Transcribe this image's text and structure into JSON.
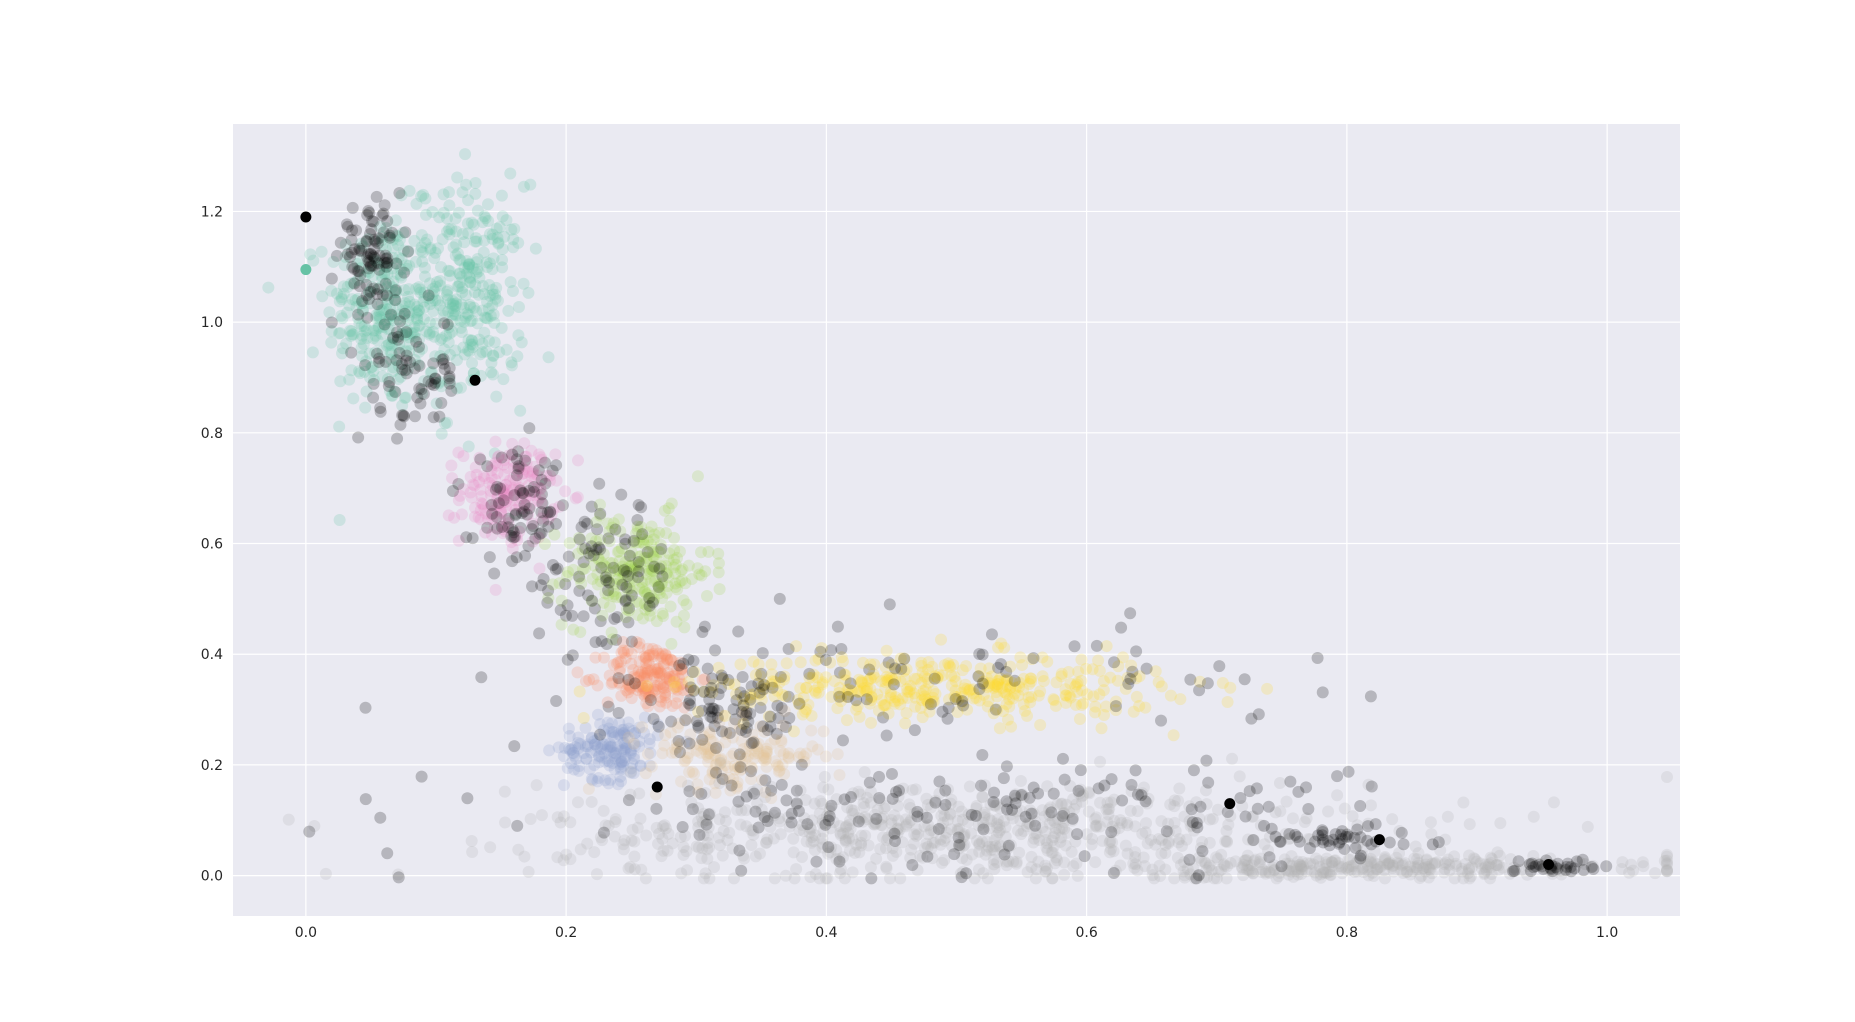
{
  "chart_data": {
    "type": "scatter",
    "title": "",
    "xlabel": "",
    "ylabel": "",
    "xlim": [
      -0.056,
      1.056
    ],
    "ylim": [
      -0.073,
      1.358
    ],
    "x_ticks": [
      0.0,
      0.2,
      0.4,
      0.6,
      0.8,
      1.0
    ],
    "x_tick_labels": [
      "0.0",
      "0.2",
      "0.4",
      "0.6",
      "0.8",
      "1.0"
    ],
    "y_ticks": [
      0.0,
      0.2,
      0.4,
      0.6,
      0.8,
      1.0,
      1.2
    ],
    "y_tick_labels": [
      "0.0",
      "0.2",
      "0.4",
      "0.6",
      "0.8",
      "1.0",
      "1.2"
    ],
    "grid": true,
    "legend": "none",
    "style": {
      "plot_background": "#eaeaf2",
      "grid_color": "#ffffff",
      "outlier_color": "#000000"
    },
    "clusters": [
      {
        "color": "#66c2a5",
        "center": [
          0.06,
          1.02
        ],
        "spread": [
          0.022,
          0.09
        ],
        "n": 260
      },
      {
        "color": "#66c2a5",
        "center": [
          0.125,
          1.05
        ],
        "spread": [
          0.022,
          0.1
        ],
        "n": 280
      },
      {
        "color": "#e78ac3",
        "center": [
          0.155,
          0.69
        ],
        "spread": [
          0.018,
          0.045
        ],
        "n": 170
      },
      {
        "color": "#a6d854",
        "center": [
          0.255,
          0.55
        ],
        "spread": [
          0.028,
          0.05
        ],
        "n": 230
      },
      {
        "color": "#fc8d62",
        "center": [
          0.265,
          0.36
        ],
        "spread": [
          0.018,
          0.03
        ],
        "n": 160
      },
      {
        "color": "#8da0cb",
        "center": [
          0.235,
          0.23
        ],
        "spread": [
          0.018,
          0.028
        ],
        "n": 150
      },
      {
        "color": "#e5c494",
        "center": [
          0.33,
          0.22
        ],
        "spread": [
          0.035,
          0.03
        ],
        "n": 160
      },
      {
        "color": "#ffd92f",
        "center": [
          0.48,
          0.34
        ],
        "spread": [
          0.09,
          0.03
        ],
        "n": 380
      },
      {
        "color": "#b3b3b3",
        "center": [
          0.5,
          0.08
        ],
        "spread": [
          0.16,
          0.045
        ],
        "n": 700
      },
      {
        "color": "#b3b3b3",
        "center": [
          0.82,
          0.015
        ],
        "spread": [
          0.12,
          0.01
        ],
        "n": 300
      }
    ],
    "noise_regions": [
      {
        "center": [
          0.05,
          1.12
        ],
        "spread": [
          0.012,
          0.04
        ],
        "n": 90
      },
      {
        "center": [
          0.08,
          0.9
        ],
        "spread": [
          0.02,
          0.06
        ],
        "n": 70
      },
      {
        "center": [
          0.165,
          0.66
        ],
        "spread": [
          0.018,
          0.05
        ],
        "n": 70
      },
      {
        "center": [
          0.23,
          0.54
        ],
        "spread": [
          0.028,
          0.07
        ],
        "n": 90
      },
      {
        "center": [
          0.32,
          0.3
        ],
        "spread": [
          0.035,
          0.04
        ],
        "n": 80
      },
      {
        "center": [
          0.48,
          0.35
        ],
        "spread": [
          0.13,
          0.05
        ],
        "n": 90
      },
      {
        "center": [
          0.5,
          0.12
        ],
        "spread": [
          0.18,
          0.05
        ],
        "n": 160
      },
      {
        "center": [
          0.79,
          0.07
        ],
        "spread": [
          0.03,
          0.012
        ],
        "n": 40
      },
      {
        "center": [
          0.96,
          0.015
        ],
        "spread": [
          0.015,
          0.008
        ],
        "n": 30
      }
    ],
    "highlighted_points": [
      {
        "x": 0.0,
        "y": 1.19,
        "color": "#000000"
      },
      {
        "x": 0.0,
        "y": 1.095,
        "color": "#66c2a5"
      },
      {
        "x": 0.13,
        "y": 0.895,
        "color": "#000000"
      },
      {
        "x": 0.27,
        "y": 0.16,
        "color": "#000000"
      },
      {
        "x": 0.71,
        "y": 0.13,
        "color": "#000000"
      },
      {
        "x": 0.825,
        "y": 0.065,
        "color": "#000000"
      },
      {
        "x": 0.955,
        "y": 0.02,
        "color": "#000000"
      }
    ]
  }
}
